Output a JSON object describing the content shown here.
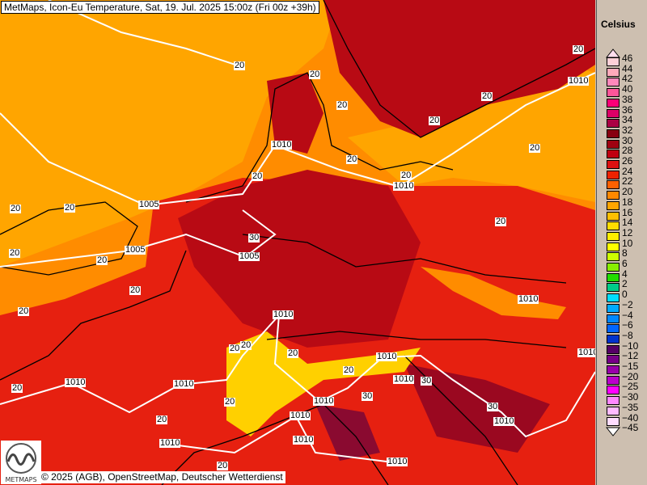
{
  "header": {
    "title": "MetMaps, Icon-Eu Temperature, Sat, 19. Jul. 2025 15:00z (Fri 00z +39h)"
  },
  "footer": {
    "credit": "© 2025 (AGB), OpenStreetMap, Deutscher Wetterdienst",
    "logo_text": "METMAPS"
  },
  "legend": {
    "unit": "Celsius",
    "labels": [
      "46",
      "44",
      "42",
      "40",
      "38",
      "36",
      "34",
      "32",
      "30",
      "28",
      "26",
      "24",
      "22",
      "20",
      "18",
      "16",
      "14",
      "12",
      "10",
      "8",
      "6",
      "4",
      "2",
      "0",
      "−2",
      "−4",
      "−6",
      "−8",
      "−10",
      "−12",
      "−15",
      "−20",
      "−25",
      "−30",
      "−35",
      "−40",
      "−45"
    ],
    "colors": [
      "#ffd0d8",
      "#ffaabb",
      "#ff88bb",
      "#ff5599",
      "#ff0077",
      "#dd0066",
      "#aa0044",
      "#880010",
      "#a00010",
      "#c00010",
      "#dd1010",
      "#ee2200",
      "#ff6000",
      "#ff8800",
      "#ffa500",
      "#ffc000",
      "#ffdd00",
      "#ffee00",
      "#ffff00",
      "#ccff00",
      "#88ee00",
      "#22dd00",
      "#00cc88",
      "#00ddff",
      "#00aaff",
      "#0088ff",
      "#0066ff",
      "#0033cc",
      "#550066",
      "#770088",
      "#9900aa",
      "#bb00cc",
      "#ff00ff",
      "#ff88ff",
      "#ffbbff",
      "#ffddff"
    ]
  },
  "contour_labels": [
    "20",
    "20",
    "20",
    "20",
    "20",
    "1010",
    "1010",
    "20",
    "20",
    "20",
    "1010",
    "20",
    "20",
    "20",
    "1005",
    "20",
    "20",
    "1005",
    "20",
    "20",
    "30",
    "1005",
    "20",
    "1010",
    "20",
    "20",
    "20",
    "1010",
    "20",
    "1010",
    "30",
    "1010",
    "20",
    "1010",
    "1010",
    "30",
    "20",
    "30",
    "20",
    "1010",
    "1010",
    "1010",
    "1010",
    "1010",
    "20",
    "1010",
    "1010",
    "20",
    "20"
  ]
}
